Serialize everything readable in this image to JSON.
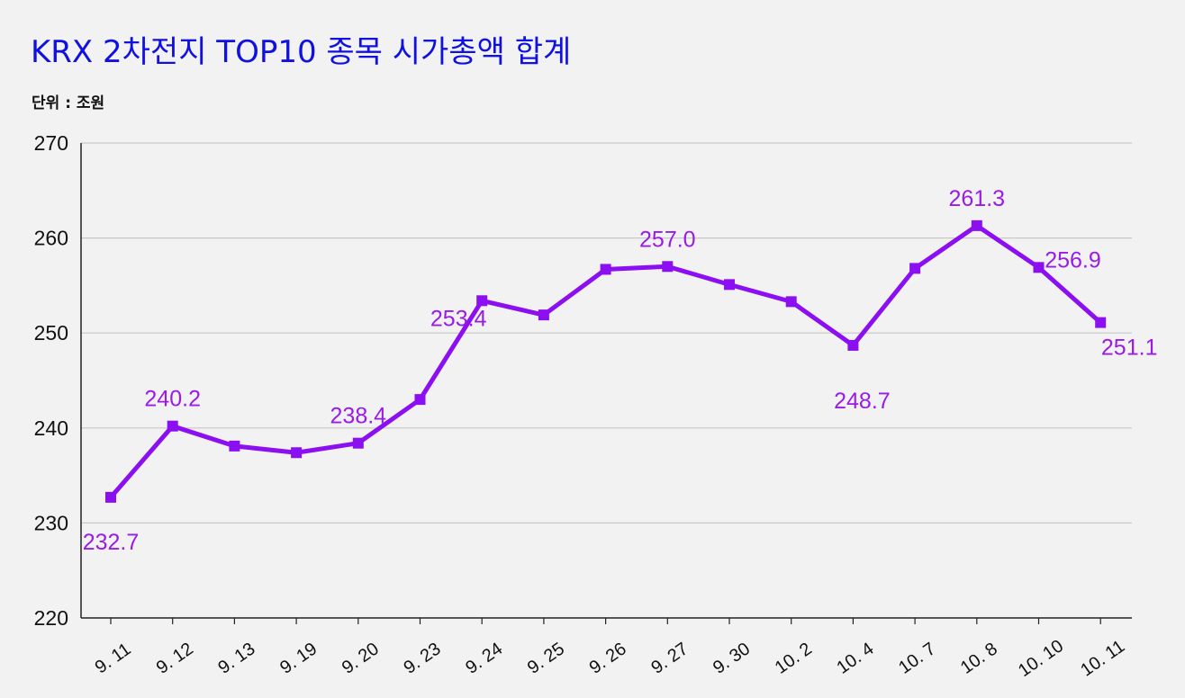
{
  "header": {
    "title": "KRX 2차전지 TOP10 종목 시가총액 합계",
    "unit": "단위 : 조원"
  },
  "colors": {
    "line": "#8b0ff0",
    "label": "#9a1ae6",
    "grid": "#c8c8c8",
    "axis": "#222222",
    "title": "#1010e0"
  },
  "chart_data": {
    "type": "line",
    "title": "KRX 2차전지 TOP10 종목 시가총액 합계",
    "ylabel": "단위 : 조원",
    "ylim": [
      220,
      270
    ],
    "yticks": [
      220,
      230,
      240,
      250,
      260,
      270
    ],
    "grid": true,
    "categories": [
      "9. 11",
      "9. 12",
      "9. 13",
      "9. 19",
      "9. 20",
      "9. 23",
      "9. 24",
      "9. 25",
      "9. 26",
      "9. 27",
      "9. 30",
      "10. 2",
      "10. 4",
      "10. 7",
      "10. 8",
      "10. 10",
      "10. 11"
    ],
    "series": [
      {
        "values": [
          232.7,
          240.2,
          238.1,
          237.4,
          238.4,
          243.0,
          253.4,
          251.9,
          256.7,
          257.0,
          255.1,
          253.3,
          248.7,
          256.8,
          261.3,
          256.9,
          251.1
        ]
      }
    ],
    "data_labels": [
      {
        "index": 0,
        "text": "232.7"
      },
      {
        "index": 1,
        "text": "240.2"
      },
      {
        "index": 4,
        "text": "238.4"
      },
      {
        "index": 6,
        "text": "253.4"
      },
      {
        "index": 9,
        "text": "257.0"
      },
      {
        "index": 12,
        "text": "248.7"
      },
      {
        "index": 14,
        "text": "261.3"
      },
      {
        "index": 15,
        "text": "256.9"
      },
      {
        "index": 16,
        "text": "251.1"
      }
    ]
  }
}
